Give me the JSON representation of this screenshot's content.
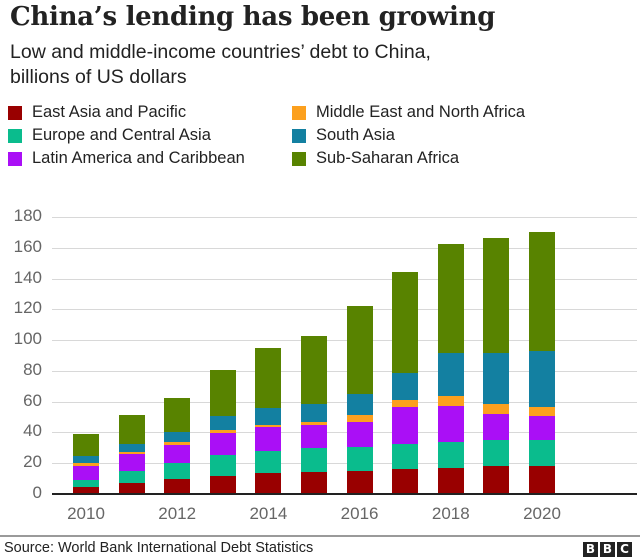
{
  "header": {
    "title": "China’s lending has been growing",
    "subtitle_line1": "Low and middle-income countries’ debt to China,",
    "subtitle_line2": "billions of US dollars"
  },
  "legend": [
    {
      "label": "East Asia and Pacific",
      "color": "#990000"
    },
    {
      "label": "Europe and Central Asia",
      "color": "#0abc8d"
    },
    {
      "label": "Latin America and Caribbean",
      "color": "#aa0ff6"
    },
    {
      "label": "Middle East and North Africa",
      "color": "#fca01e"
    },
    {
      "label": "South Asia",
      "color": "#1380a1"
    },
    {
      "label": "Sub-Saharan Africa",
      "color": "#588300"
    }
  ],
  "footer": {
    "source": "Source: World Bank International Debt Statistics",
    "logo": [
      "B",
      "B",
      "C"
    ]
  },
  "chart_data": {
    "type": "bar",
    "stacked": true,
    "title": "China’s lending has been growing",
    "subtitle": "Low and middle-income countries’ debt to China, billions of US dollars",
    "xlabel": "",
    "ylabel": "billions of US dollars",
    "ylim": [
      0,
      180
    ],
    "yticks": [
      0,
      20,
      40,
      60,
      80,
      100,
      120,
      140,
      160,
      180
    ],
    "xticks": [
      "2010",
      "2012",
      "2014",
      "2016",
      "2018",
      "2020"
    ],
    "grid": true,
    "legend_position": "top",
    "categories": [
      "2010",
      "2011",
      "2012",
      "2013",
      "2014",
      "2015",
      "2016",
      "2017",
      "2018",
      "2019",
      "2020"
    ],
    "series": [
      {
        "name": "East Asia and Pacific",
        "color": "#990000",
        "values": [
          4.8,
          7.4,
          9.8,
          12.0,
          13.7,
          14.4,
          14.8,
          16.1,
          17.0,
          17.9,
          18.3
        ]
      },
      {
        "name": "Europe and Central Asia",
        "color": "#0abc8d",
        "values": [
          4.4,
          7.4,
          10.2,
          13.5,
          14.4,
          15.5,
          15.7,
          16.6,
          17.0,
          17.4,
          16.8
        ]
      },
      {
        "name": "Latin America and Caribbean",
        "color": "#aa0ff6",
        "values": [
          9.3,
          10.9,
          11.8,
          14.2,
          15.2,
          14.7,
          16.6,
          23.7,
          23.1,
          17.0,
          15.7
        ]
      },
      {
        "name": "Middle East and North Africa",
        "color": "#fca01e",
        "values": [
          1.8,
          1.8,
          2.2,
          2.1,
          1.8,
          2.0,
          4.1,
          4.4,
          6.5,
          6.1,
          5.9
        ]
      },
      {
        "name": "South Asia",
        "color": "#1380a1",
        "values": [
          4.1,
          5.2,
          6.3,
          8.7,
          10.9,
          12.0,
          13.7,
          18.1,
          27.9,
          33.1,
          36.3
        ]
      },
      {
        "name": "Sub-Saharan Africa",
        "color": "#588300",
        "values": [
          14.8,
          18.9,
          22.2,
          29.9,
          39.0,
          44.0,
          57.5,
          65.3,
          71.2,
          74.9,
          77.5
        ]
      }
    ],
    "totals": [
      39.2,
      51.6,
      62.5,
      80.4,
      95.0,
      102.6,
      122.4,
      144.2,
      162.7,
      166.4,
      170.5
    ]
  }
}
